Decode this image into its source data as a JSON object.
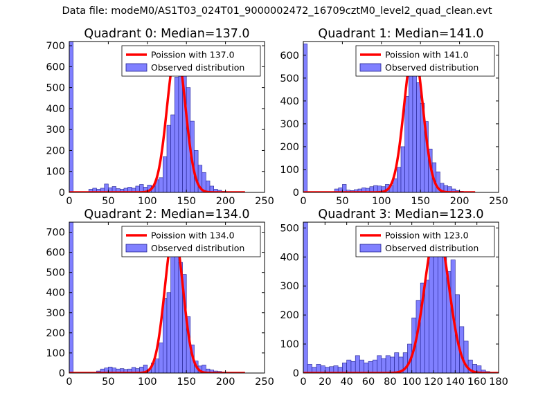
{
  "figure": {
    "suptitle": "Data file: modeM0/AS1T03_024T01_9000002472_16709cztM0_level2_quad_clean.evt",
    "colors": {
      "hist_fill": "#8080ff",
      "hist_edge": "#1f1f8f",
      "poisson_line": "#ff0000",
      "axis": "#000000"
    }
  },
  "chart_data": [
    {
      "type": "bar",
      "title": "Quadrant 0: Median=137.0",
      "xlim": [
        0,
        250
      ],
      "ylim": [
        0,
        720
      ],
      "xticks": [
        "0",
        "50",
        "100",
        "150",
        "200",
        "250"
      ],
      "yticks": [
        "0",
        "100",
        "200",
        "300",
        "400",
        "500",
        "600",
        "700"
      ],
      "xtick_values": [
        0,
        50,
        100,
        150,
        200,
        250
      ],
      "ytick_values": [
        0,
        100,
        200,
        300,
        400,
        500,
        600,
        700
      ],
      "legend": {
        "line_label": "Poission with 137.0",
        "hist_label": "Observed distribution",
        "placement": "top-right"
      },
      "bin_width": 5,
      "bins": [
        {
          "x": 0,
          "y": 720
        },
        {
          "x": 25,
          "y": 15
        },
        {
          "x": 30,
          "y": 20
        },
        {
          "x": 35,
          "y": 15
        },
        {
          "x": 40,
          "y": 20
        },
        {
          "x": 45,
          "y": 40
        },
        {
          "x": 50,
          "y": 22
        },
        {
          "x": 55,
          "y": 28
        },
        {
          "x": 60,
          "y": 18
        },
        {
          "x": 65,
          "y": 15
        },
        {
          "x": 70,
          "y": 20
        },
        {
          "x": 75,
          "y": 25
        },
        {
          "x": 80,
          "y": 20
        },
        {
          "x": 85,
          "y": 30
        },
        {
          "x": 90,
          "y": 38
        },
        {
          "x": 95,
          "y": 25
        },
        {
          "x": 100,
          "y": 35
        },
        {
          "x": 105,
          "y": 30
        },
        {
          "x": 110,
          "y": 60
        },
        {
          "x": 115,
          "y": 70
        },
        {
          "x": 120,
          "y": 170
        },
        {
          "x": 125,
          "y": 320
        },
        {
          "x": 130,
          "y": 370
        },
        {
          "x": 135,
          "y": 550
        },
        {
          "x": 140,
          "y": 630
        },
        {
          "x": 145,
          "y": 580
        },
        {
          "x": 150,
          "y": 500
        },
        {
          "x": 155,
          "y": 340
        },
        {
          "x": 160,
          "y": 200
        },
        {
          "x": 165,
          "y": 130
        },
        {
          "x": 170,
          "y": 95
        },
        {
          "x": 175,
          "y": 55
        },
        {
          "x": 180,
          "y": 30
        },
        {
          "x": 185,
          "y": 15
        },
        {
          "x": 190,
          "y": 10
        },
        {
          "x": 195,
          "y": 5
        }
      ],
      "poisson": {
        "mean": 137,
        "peak": 680,
        "sigma": 11.7,
        "x_range": [
          0,
          225
        ]
      }
    },
    {
      "type": "bar",
      "title": "Quadrant 1: Median=141.0",
      "xlim": [
        0,
        250
      ],
      "ylim": [
        0,
        660
      ],
      "xticks": [
        "0",
        "50",
        "100",
        "150",
        "200",
        "250"
      ],
      "yticks": [
        "0",
        "100",
        "200",
        "300",
        "400",
        "500",
        "600"
      ],
      "xtick_values": [
        0,
        50,
        100,
        150,
        200,
        250
      ],
      "ytick_values": [
        0,
        100,
        200,
        300,
        400,
        500,
        600
      ],
      "legend": {
        "line_label": "Poission with 141.0",
        "hist_label": "Observed distribution",
        "placement": "top-right"
      },
      "bin_width": 5,
      "bins": [
        {
          "x": 0,
          "y": 650
        },
        {
          "x": 40,
          "y": 15
        },
        {
          "x": 45,
          "y": 20
        },
        {
          "x": 50,
          "y": 35
        },
        {
          "x": 55,
          "y": 10
        },
        {
          "x": 60,
          "y": 8
        },
        {
          "x": 65,
          "y": 12
        },
        {
          "x": 70,
          "y": 15
        },
        {
          "x": 75,
          "y": 20
        },
        {
          "x": 80,
          "y": 18
        },
        {
          "x": 85,
          "y": 25
        },
        {
          "x": 90,
          "y": 30
        },
        {
          "x": 95,
          "y": 28
        },
        {
          "x": 100,
          "y": 25
        },
        {
          "x": 105,
          "y": 35
        },
        {
          "x": 110,
          "y": 30
        },
        {
          "x": 115,
          "y": 60
        },
        {
          "x": 120,
          "y": 110
        },
        {
          "x": 125,
          "y": 200
        },
        {
          "x": 130,
          "y": 420
        },
        {
          "x": 135,
          "y": 560
        },
        {
          "x": 140,
          "y": 560
        },
        {
          "x": 145,
          "y": 480
        },
        {
          "x": 150,
          "y": 390
        },
        {
          "x": 155,
          "y": 310
        },
        {
          "x": 160,
          "y": 190
        },
        {
          "x": 165,
          "y": 130
        },
        {
          "x": 170,
          "y": 90
        },
        {
          "x": 175,
          "y": 40
        },
        {
          "x": 180,
          "y": 30
        },
        {
          "x": 185,
          "y": 25
        },
        {
          "x": 190,
          "y": 15
        },
        {
          "x": 195,
          "y": 8
        },
        {
          "x": 200,
          "y": 5
        },
        {
          "x": 205,
          "y": 3
        },
        {
          "x": 210,
          "y": 2
        }
      ],
      "poisson": {
        "mean": 141,
        "peak": 630,
        "sigma": 11.9,
        "x_range": [
          0,
          220
        ]
      }
    },
    {
      "type": "bar",
      "title": "Quadrant 2: Median=134.0",
      "xlim": [
        0,
        250
      ],
      "ylim": [
        0,
        750
      ],
      "xticks": [
        "0",
        "50",
        "100",
        "150",
        "200",
        "250"
      ],
      "yticks": [
        "0",
        "100",
        "200",
        "300",
        "400",
        "500",
        "600",
        "700"
      ],
      "xtick_values": [
        0,
        50,
        100,
        150,
        200,
        250
      ],
      "ytick_values": [
        0,
        100,
        200,
        300,
        400,
        500,
        600,
        700
      ],
      "legend": {
        "line_label": "Poission with 134.0",
        "hist_label": "Observed distribution",
        "placement": "top-right"
      },
      "bin_width": 5,
      "bins": [
        {
          "x": 0,
          "y": 750
        },
        {
          "x": 35,
          "y": 10
        },
        {
          "x": 40,
          "y": 20
        },
        {
          "x": 45,
          "y": 25
        },
        {
          "x": 50,
          "y": 30
        },
        {
          "x": 55,
          "y": 25
        },
        {
          "x": 60,
          "y": 20
        },
        {
          "x": 65,
          "y": 22
        },
        {
          "x": 70,
          "y": 18
        },
        {
          "x": 75,
          "y": 20
        },
        {
          "x": 80,
          "y": 28
        },
        {
          "x": 85,
          "y": 22
        },
        {
          "x": 90,
          "y": 30
        },
        {
          "x": 95,
          "y": 40
        },
        {
          "x": 100,
          "y": 20
        },
        {
          "x": 105,
          "y": 50
        },
        {
          "x": 110,
          "y": 70
        },
        {
          "x": 115,
          "y": 150
        },
        {
          "x": 120,
          "y": 370
        },
        {
          "x": 125,
          "y": 400
        },
        {
          "x": 130,
          "y": 610
        },
        {
          "x": 135,
          "y": 720
        },
        {
          "x": 140,
          "y": 550
        },
        {
          "x": 145,
          "y": 490
        },
        {
          "x": 150,
          "y": 280
        },
        {
          "x": 155,
          "y": 140
        },
        {
          "x": 160,
          "y": 60
        },
        {
          "x": 165,
          "y": 35
        },
        {
          "x": 170,
          "y": 40
        },
        {
          "x": 175,
          "y": 20
        },
        {
          "x": 180,
          "y": 15
        },
        {
          "x": 185,
          "y": 10
        },
        {
          "x": 190,
          "y": 8
        },
        {
          "x": 195,
          "y": 5
        },
        {
          "x": 200,
          "y": 4
        },
        {
          "x": 205,
          "y": 2
        }
      ],
      "poisson": {
        "mean": 134,
        "peak": 700,
        "sigma": 11.6,
        "x_range": [
          0,
          225
        ]
      }
    },
    {
      "type": "bar",
      "title": "Quadrant 3: Median=123.0",
      "xlim": [
        0,
        180
      ],
      "ylim": [
        0,
        520
      ],
      "xticks": [
        "0",
        "20",
        "40",
        "60",
        "80",
        "100",
        "120",
        "140",
        "160",
        "180"
      ],
      "yticks": [
        "0",
        "100",
        "200",
        "300",
        "400",
        "500"
      ],
      "xtick_values": [
        0,
        20,
        40,
        60,
        80,
        100,
        120,
        140,
        160,
        180
      ],
      "ytick_values": [
        0,
        100,
        200,
        300,
        400,
        500
      ],
      "legend": {
        "line_label": "Poission with 123.0",
        "hist_label": "Observed distribution",
        "placement": "top-right"
      },
      "bin_width": 4,
      "bins": [
        {
          "x": 0,
          "y": 520
        },
        {
          "x": 4,
          "y": 30
        },
        {
          "x": 8,
          "y": 20
        },
        {
          "x": 12,
          "y": 30
        },
        {
          "x": 16,
          "y": 25
        },
        {
          "x": 20,
          "y": 20
        },
        {
          "x": 24,
          "y": 22
        },
        {
          "x": 28,
          "y": 25
        },
        {
          "x": 32,
          "y": 20
        },
        {
          "x": 36,
          "y": 35
        },
        {
          "x": 40,
          "y": 45
        },
        {
          "x": 44,
          "y": 40
        },
        {
          "x": 48,
          "y": 60
        },
        {
          "x": 52,
          "y": 45
        },
        {
          "x": 56,
          "y": 35
        },
        {
          "x": 60,
          "y": 40
        },
        {
          "x": 64,
          "y": 45
        },
        {
          "x": 68,
          "y": 60
        },
        {
          "x": 72,
          "y": 50
        },
        {
          "x": 76,
          "y": 60
        },
        {
          "x": 80,
          "y": 55
        },
        {
          "x": 84,
          "y": 70
        },
        {
          "x": 88,
          "y": 55
        },
        {
          "x": 92,
          "y": 70
        },
        {
          "x": 96,
          "y": 100
        },
        {
          "x": 100,
          "y": 190
        },
        {
          "x": 104,
          "y": 250
        },
        {
          "x": 108,
          "y": 310
        },
        {
          "x": 112,
          "y": 320
        },
        {
          "x": 116,
          "y": 430
        },
        {
          "x": 120,
          "y": 500
        },
        {
          "x": 124,
          "y": 430
        },
        {
          "x": 128,
          "y": 400
        },
        {
          "x": 132,
          "y": 350
        },
        {
          "x": 136,
          "y": 390
        },
        {
          "x": 140,
          "y": 270
        },
        {
          "x": 144,
          "y": 160
        },
        {
          "x": 148,
          "y": 110
        },
        {
          "x": 152,
          "y": 45
        },
        {
          "x": 156,
          "y": 30
        },
        {
          "x": 160,
          "y": 25
        },
        {
          "x": 164,
          "y": 10
        },
        {
          "x": 168,
          "y": 5
        }
      ],
      "poisson": {
        "mean": 123,
        "peak": 500,
        "sigma": 11.1,
        "x_range": [
          0,
          180
        ]
      }
    }
  ]
}
